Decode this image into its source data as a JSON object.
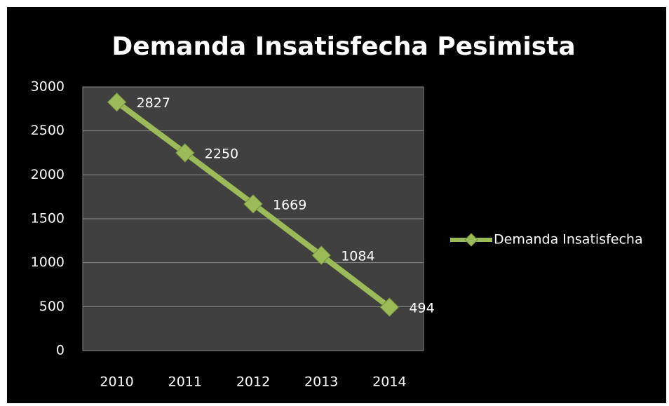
{
  "chart_data": {
    "type": "line",
    "title": "Demanda Insatisfecha Pesimista",
    "categories": [
      "2010",
      "2011",
      "2012",
      "2013",
      "2014"
    ],
    "series": [
      {
        "name": "Demanda Insatisfecha",
        "color": "#9bbb59",
        "values": [
          2827,
          2250,
          1669,
          1084,
          494
        ]
      }
    ],
    "ylim": [
      0,
      3000
    ],
    "yticks": [
      0,
      500,
      1000,
      1500,
      2000,
      2500,
      3000
    ],
    "grid": true,
    "legend": "right"
  }
}
